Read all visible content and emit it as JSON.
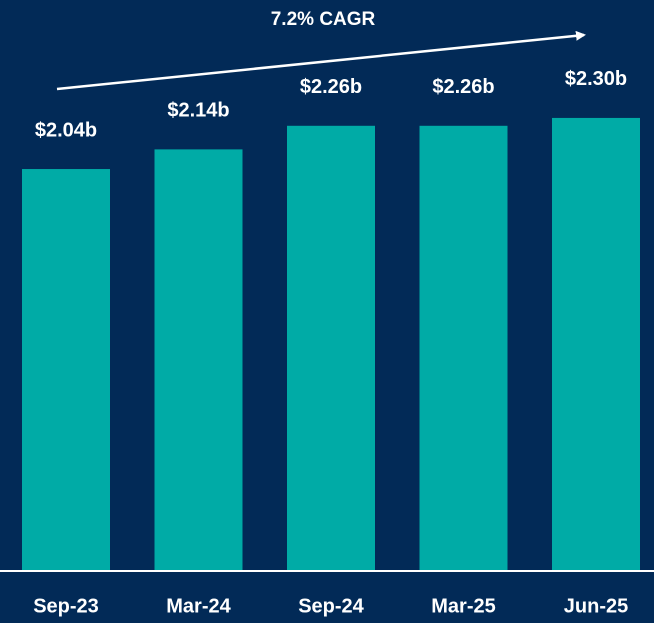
{
  "chart_data": {
    "type": "bar",
    "annotation": "7.2% CAGR",
    "categories": [
      "Sep-23",
      "Mar-24",
      "Sep-24",
      "Mar-25",
      "Jun-25"
    ],
    "values": [
      2.04,
      2.14,
      2.26,
      2.26,
      2.3
    ],
    "value_labels": [
      "$2.04b",
      "$2.14b",
      "$2.26b",
      "$2.26b",
      "$2.30b"
    ],
    "color": "#00aba6",
    "ylim": [
      0,
      2.9
    ]
  }
}
